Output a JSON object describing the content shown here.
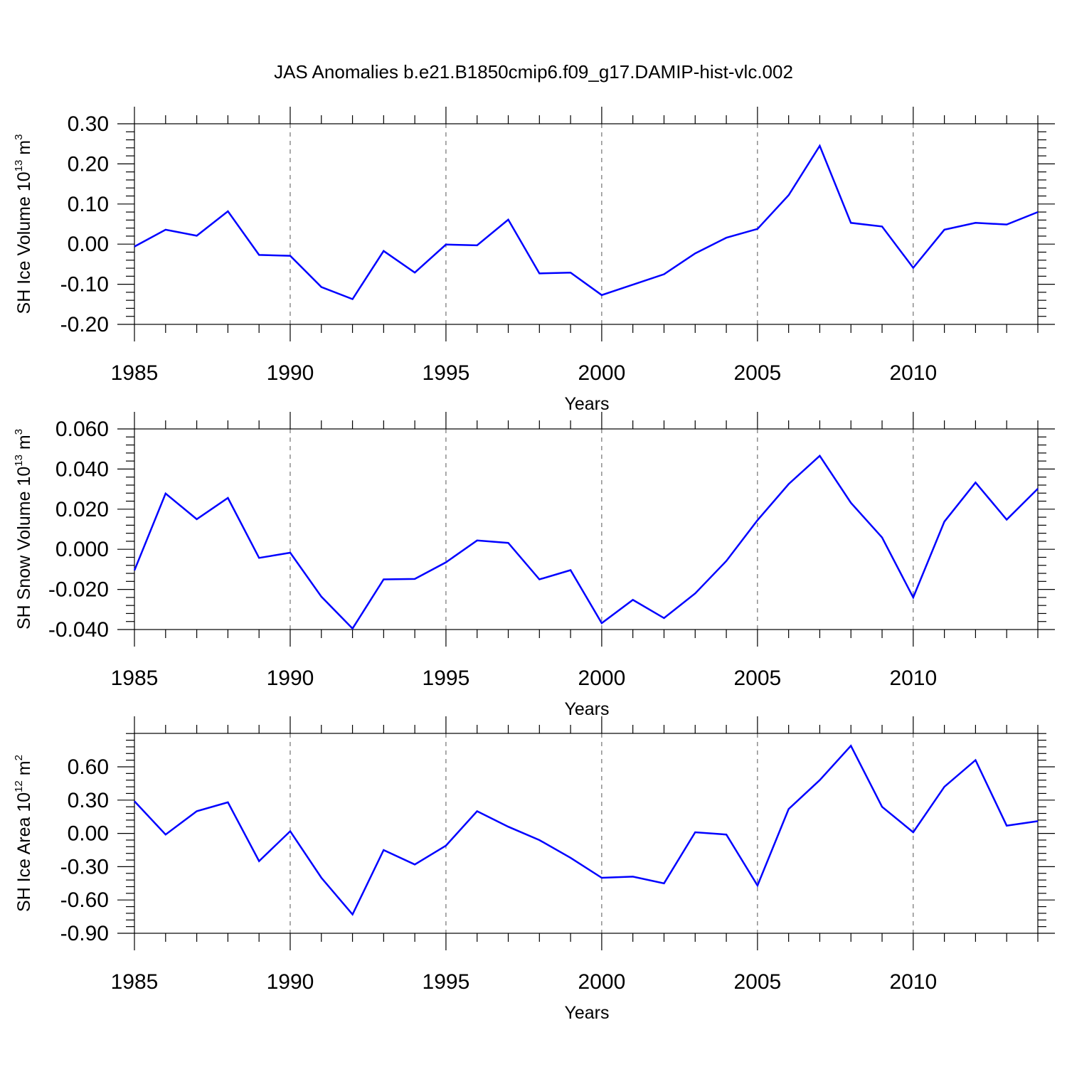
{
  "title": "JAS Anomalies b.e21.B1850cmip6.f09_g17.DAMIP-hist-vlc.002",
  "colors": {
    "line": "#0000ff",
    "axis": "#000000",
    "grid": "#555555"
  },
  "chart_data": [
    {
      "type": "line",
      "title": "",
      "xlabel": "Years",
      "ylabel": {
        "text": "SH Ice Volume 10",
        "sup": "13",
        "unit": " m",
        "unit_sup": "3"
      },
      "xlim": [
        1985,
        2014
      ],
      "ylim": [
        -0.2,
        0.3
      ],
      "yticks": [
        -0.2,
        -0.1,
        0.0,
        0.1,
        0.2,
        0.3
      ],
      "ytick_labels": [
        "-0.20",
        "-0.10",
        "0.00",
        "0.10",
        "0.20",
        "0.30"
      ],
      "xticks": [
        1985,
        1990,
        1995,
        2000,
        2005,
        2010
      ],
      "xtick_labels": [
        "1985",
        "1990",
        "1995",
        "2000",
        "2005",
        "2010"
      ],
      "x": [
        1985,
        1986,
        1987,
        1988,
        1989,
        1990,
        1991,
        1992,
        1993,
        1994,
        1995,
        1996,
        1997,
        1998,
        1999,
        2000,
        2001,
        2002,
        2003,
        2004,
        2005,
        2006,
        2007,
        2008,
        2009,
        2010,
        2011,
        2012,
        2013,
        2014
      ],
      "series": [
        {
          "name": "SH Ice Volume",
          "values": [
            -0.006,
            0.036,
            0.021,
            0.082,
            -0.027,
            -0.029,
            -0.107,
            -0.137,
            -0.017,
            -0.071,
            -0.001,
            -0.003,
            0.061,
            -0.073,
            -0.071,
            -0.127,
            -0.101,
            -0.075,
            -0.023,
            0.016,
            0.038,
            0.122,
            0.245,
            0.053,
            0.044,
            -0.059,
            0.036,
            0.053,
            0.049,
            0.08
          ]
        }
      ],
      "grid": "vertical dashed at major x ticks",
      "legend": "none"
    },
    {
      "type": "line",
      "title": "",
      "xlabel": "Years",
      "ylabel": {
        "text": "SH Snow Volume 10",
        "sup": "13",
        "unit": " m",
        "unit_sup": "3"
      },
      "xlim": [
        1985,
        2014
      ],
      "ylim": [
        -0.04,
        0.06
      ],
      "yticks": [
        -0.04,
        -0.02,
        0.0,
        0.02,
        0.04,
        0.06
      ],
      "ytick_labels": [
        "-0.040",
        "-0.020",
        "0.000",
        "0.020",
        "0.040",
        "0.060"
      ],
      "xticks": [
        1985,
        1990,
        1995,
        2000,
        2005,
        2010
      ],
      "xtick_labels": [
        "1985",
        "1990",
        "1995",
        "2000",
        "2005",
        "2010"
      ],
      "x": [
        1985,
        1986,
        1987,
        1988,
        1989,
        1990,
        1991,
        1992,
        1993,
        1994,
        1995,
        1996,
        1997,
        1998,
        1999,
        2000,
        2001,
        2002,
        2003,
        2004,
        2005,
        2006,
        2007,
        2008,
        2009,
        2010,
        2011,
        2012,
        2013,
        2014
      ],
      "series": [
        {
          "name": "SH Snow Volume",
          "values": [
            -0.0105,
            0.0278,
            0.015,
            0.0256,
            -0.0043,
            -0.0017,
            -0.0236,
            -0.0395,
            -0.015,
            -0.0148,
            -0.0065,
            0.0044,
            0.0032,
            -0.015,
            -0.0104,
            -0.0368,
            -0.0252,
            -0.0343,
            -0.022,
            -0.0058,
            0.0145,
            0.0325,
            0.0466,
            0.0232,
            0.0059,
            -0.024,
            0.0138,
            0.0333,
            0.0148,
            0.0302
          ]
        }
      ],
      "grid": "vertical dashed at major x ticks",
      "legend": "none"
    },
    {
      "type": "line",
      "title": "",
      "xlabel": "Years",
      "ylabel": {
        "text": "SH Ice Area 10",
        "sup": "12",
        "unit": " m",
        "unit_sup": "2"
      },
      "xlim": [
        1985,
        2014
      ],
      "ylim": [
        -0.9,
        0.9
      ],
      "yticks": [
        -0.9,
        -0.6,
        -0.3,
        0.0,
        0.3,
        0.6
      ],
      "ytick_labels": [
        "-0.90",
        "-0.60",
        "-0.30",
        "0.00",
        "0.30",
        "0.60"
      ],
      "xticks": [
        1985,
        1990,
        1995,
        2000,
        2005,
        2010
      ],
      "xtick_labels": [
        "1985",
        "1990",
        "1995",
        "2000",
        "2005",
        "2010"
      ],
      "x": [
        1985,
        1986,
        1987,
        1988,
        1989,
        1990,
        1991,
        1992,
        1993,
        1994,
        1995,
        1996,
        1997,
        1998,
        1999,
        2000,
        2001,
        2002,
        2003,
        2004,
        2005,
        2006,
        2007,
        2008,
        2009,
        2010,
        2011,
        2012,
        2013,
        2014
      ],
      "series": [
        {
          "name": "SH Ice Area",
          "values": [
            0.29,
            -0.01,
            0.2,
            0.28,
            -0.25,
            0.02,
            -0.4,
            -0.73,
            -0.15,
            -0.28,
            -0.11,
            0.2,
            0.06,
            -0.06,
            -0.22,
            -0.4,
            -0.39,
            -0.45,
            0.01,
            -0.01,
            -0.47,
            0.22,
            0.48,
            0.79,
            0.24,
            0.01,
            0.42,
            0.66,
            0.07,
            0.11
          ]
        }
      ],
      "grid": "vertical dashed at major x ticks",
      "legend": "none"
    }
  ]
}
